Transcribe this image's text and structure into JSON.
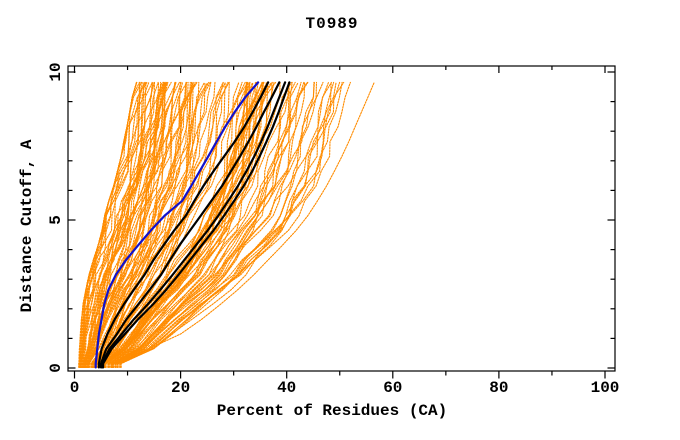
{
  "title": "T0989",
  "axes": {
    "x": {
      "label": "Percent of Residues (CA)",
      "min": 0,
      "max": 100,
      "major_ticks": [
        0,
        20,
        40,
        60,
        80,
        100
      ],
      "major_tick_labels": [
        "0",
        "20",
        "40",
        "60",
        "80",
        "100"
      ],
      "minor_ticks": [
        10,
        30,
        50,
        70,
        90
      ]
    },
    "y": {
      "label": "Distance Cutoff, A",
      "min": 0,
      "max": 10,
      "major_ticks": [
        0,
        5,
        10
      ],
      "major_tick_labels": [
        "0",
        "5",
        "10"
      ],
      "minor_ticks": [
        1,
        2,
        3,
        4,
        6,
        7,
        8,
        9
      ]
    }
  },
  "colors": {
    "background": "#ffffff",
    "frame": "#000000",
    "orange_models": "#ff8c00",
    "black_models": "#000000",
    "blue_model": "#1111cc"
  },
  "chart_data": {
    "type": "line",
    "title": "T0989",
    "xlabel": "Percent of Residues (CA)",
    "ylabel": "Distance Cutoff, A",
    "xlim": [
      0,
      100
    ],
    "ylim": [
      0,
      10
    ],
    "grid": false,
    "legend": "none",
    "cutoffs": [
      0.15,
      0.65,
      1.15,
      1.65,
      2.15,
      2.65,
      3.15,
      3.65,
      4.15,
      4.65,
      5.15,
      5.65,
      6.15,
      6.65,
      7.15,
      7.65,
      8.15,
      8.65,
      9.15,
      9.65
    ],
    "series": [
      {
        "name": "blue-model",
        "style": "solid",
        "color": "#1111cc",
        "width": 2.2,
        "percent": [
          4.0,
          4.3,
          4.6,
          5.1,
          5.6,
          6.4,
          7.8,
          9.7,
          12.0,
          14.4,
          17.0,
          20.3,
          22.0,
          23.6,
          25.2,
          26.8,
          28.4,
          30.2,
          32.2,
          34.6
        ]
      },
      {
        "name": "black-model-1",
        "style": "solid",
        "color": "#000000",
        "width": 2.2,
        "percent": [
          4.6,
          5.1,
          6.2,
          7.6,
          9.3,
          11.2,
          13.2,
          14.9,
          16.8,
          18.8,
          21.0,
          22.6,
          24.3,
          26.2,
          28.2,
          30.2,
          32.0,
          33.6,
          35.1,
          36.5
        ]
      },
      {
        "name": "black-model-2",
        "style": "solid",
        "color": "#000000",
        "width": 2.2,
        "percent": [
          5.0,
          6.0,
          8.0,
          9.8,
          12.0,
          14.2,
          16.3,
          18.0,
          19.8,
          21.8,
          23.8,
          25.8,
          27.8,
          29.5,
          31.2,
          32.8,
          34.3,
          35.7,
          37.2,
          38.6
        ]
      },
      {
        "name": "black-model-3",
        "style": "solid",
        "color": "#000000",
        "width": 2.2,
        "percent": [
          5.2,
          6.6,
          8.9,
          11.2,
          13.8,
          16.2,
          18.5,
          20.7,
          22.9,
          25.1,
          27.1,
          29.0,
          30.8,
          32.4,
          33.9,
          35.2,
          36.4,
          37.5,
          38.6,
          39.7
        ]
      },
      {
        "name": "black-model-4",
        "style": "solid",
        "color": "#000000",
        "width": 2.2,
        "percent": [
          5.4,
          7.0,
          9.5,
          12.0,
          14.8,
          17.3,
          19.6,
          21.8,
          24.0,
          26.2,
          28.2,
          30.1,
          31.9,
          33.5,
          34.9,
          36.2,
          37.4,
          38.5,
          39.5,
          40.5
        ]
      },
      {
        "name": "orange-outlier-model",
        "style": "dotted",
        "color": "#ff8c00",
        "width": 1.1,
        "percent": [
          7.0,
          14.0,
          20.0,
          24.0,
          27.5,
          30.8,
          33.8,
          36.5,
          39.2,
          41.8,
          44.0,
          45.8,
          47.5,
          49.0,
          50.4,
          51.7,
          52.9,
          54.1,
          55.3,
          56.5
        ]
      },
      {
        "name": "orange-model-ensemble",
        "style": "dotted",
        "color": "#ff8c00",
        "width": 1.1,
        "count": 135,
        "envelope_left_percent": [
          0.7,
          0.8,
          1.0,
          1.2,
          1.5,
          2.0,
          2.6,
          3.4,
          4.3,
          5.0,
          5.5,
          6.3,
          7.2,
          7.9,
          8.6,
          9.1,
          9.7,
          10.2,
          10.7,
          11.5
        ],
        "envelope_right_percent": [
          9.0,
          15.5,
          19.0,
          22.5,
          26.0,
          30.0,
          33.5,
          36.0,
          38.5,
          41.0,
          43.0,
          44.5,
          46.0,
          47.2,
          48.2,
          49.0,
          49.8,
          50.4,
          51.0,
          52.0
        ]
      }
    ]
  }
}
